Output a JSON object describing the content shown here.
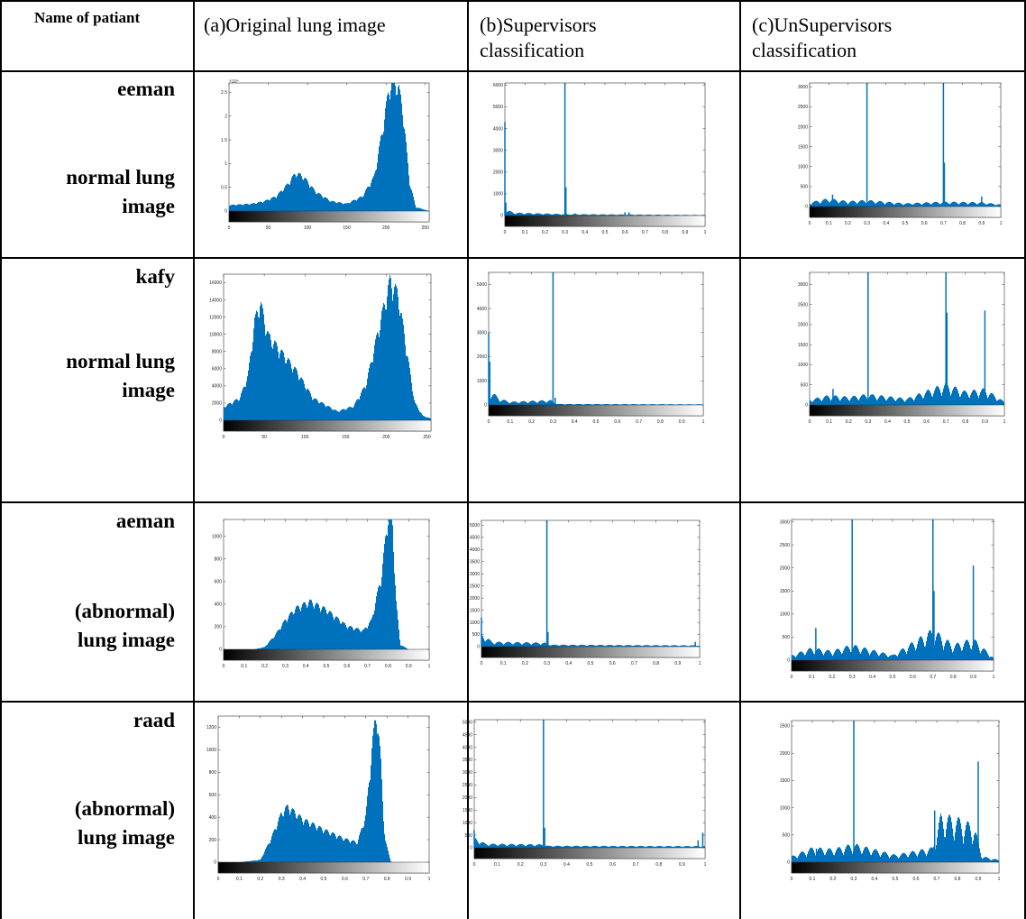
{
  "headers": {
    "name": "Name of patiant",
    "col_a": "(a)Original lung image",
    "col_b_line1": "(b)Supervisors",
    "col_b_line2": "classification",
    "col_c_line1": "(c)UnSupervisors",
    "col_c_line2": "classification"
  },
  "rows": [
    {
      "name": "eeman",
      "label_line1": "normal lung",
      "label_line2": "image"
    },
    {
      "name": "kafy",
      "label_line1": "normal lung",
      "label_line2": "image"
    },
    {
      "name": "aeman",
      "label_line1": "(abnormal)",
      "label_line2": "lung image"
    },
    {
      "name": "raad",
      "label_line1": "(abnormal)",
      "label_line2": "lung image"
    }
  ],
  "colors": {
    "bar": "#0072BD",
    "border": "#000000"
  },
  "chart_data": [
    {
      "id": "r1a",
      "type": "area",
      "xlim": [
        0,
        255
      ],
      "xticks": [
        0,
        50,
        100,
        150,
        200,
        250
      ],
      "yticks": [
        0,
        0.5,
        1,
        1.5,
        2,
        2.5
      ],
      "ylim": [
        0,
        2.7
      ],
      "y_exponent": "×10⁴",
      "peaks": [
        [
          0,
          0.12
        ],
        [
          30,
          0.15
        ],
        [
          45,
          0.2
        ],
        [
          60,
          0.3
        ],
        [
          75,
          0.55
        ],
        [
          85,
          0.78
        ],
        [
          95,
          0.7
        ],
        [
          110,
          0.4
        ],
        [
          130,
          0.2
        ],
        [
          150,
          0.15
        ],
        [
          170,
          0.3
        ],
        [
          185,
          0.7
        ],
        [
          195,
          1.6
        ],
        [
          205,
          2.6
        ],
        [
          215,
          2.6
        ],
        [
          222,
          2.0
        ],
        [
          230,
          0.6
        ],
        [
          238,
          0.08
        ],
        [
          255,
          0
        ]
      ]
    },
    {
      "id": "r1b",
      "type": "spikes",
      "xlim": [
        0,
        1
      ],
      "xticks": [
        0,
        0.1,
        0.2,
        0.3,
        0.4,
        0.5,
        0.6,
        0.7,
        0.8,
        0.9,
        1
      ],
      "yticks": [
        0,
        1000,
        2000,
        3000,
        4000,
        5000,
        6000
      ],
      "ylim": [
        0,
        6100
      ],
      "spikes": [
        [
          0,
          4300
        ],
        [
          0.005,
          600
        ],
        [
          0.3,
          6100
        ],
        [
          0.305,
          1300
        ],
        [
          0.35,
          100
        ],
        [
          0.6,
          150
        ],
        [
          0.62,
          150
        ]
      ],
      "base": [
        [
          0,
          200
        ],
        [
          0.05,
          100
        ],
        [
          0.3,
          50
        ],
        [
          1,
          20
        ]
      ]
    },
    {
      "id": "r1c",
      "type": "spikes",
      "xlim": [
        0,
        1
      ],
      "xticks": [
        0,
        0.1,
        0.2,
        0.3,
        0.4,
        0.5,
        0.6,
        0.7,
        0.8,
        0.9,
        1
      ],
      "yticks": [
        0,
        500,
        1000,
        1500,
        2000,
        2500,
        3000
      ],
      "ylim": [
        0,
        3100
      ],
      "spikes": [
        [
          0.12,
          300
        ],
        [
          0.3,
          3100
        ],
        [
          0.7,
          3100
        ],
        [
          0.705,
          1100
        ],
        [
          0.9,
          250
        ]
      ],
      "base": [
        [
          0,
          80
        ],
        [
          0.1,
          150
        ],
        [
          0.2,
          100
        ],
        [
          0.3,
          120
        ],
        [
          0.5,
          60
        ],
        [
          0.7,
          90
        ],
        [
          0.9,
          80
        ],
        [
          1,
          40
        ]
      ]
    },
    {
      "id": "r2a",
      "type": "area",
      "xlim": [
        0,
        255
      ],
      "xticks": [
        0,
        50,
        100,
        150,
        200,
        250
      ],
      "yticks": [
        0,
        2000,
        4000,
        6000,
        8000,
        10000,
        12000,
        14000,
        16000
      ],
      "ylim": [
        0,
        17000
      ],
      "peaks": [
        [
          0,
          1500
        ],
        [
          20,
          2500
        ],
        [
          30,
          5000
        ],
        [
          38,
          11000
        ],
        [
          45,
          13300
        ],
        [
          55,
          9500
        ],
        [
          70,
          7800
        ],
        [
          90,
          5500
        ],
        [
          110,
          2500
        ],
        [
          140,
          1000
        ],
        [
          160,
          1600
        ],
        [
          175,
          4000
        ],
        [
          190,
          10000
        ],
        [
          205,
          15800
        ],
        [
          215,
          14000
        ],
        [
          225,
          8000
        ],
        [
          235,
          2000
        ],
        [
          245,
          500
        ],
        [
          255,
          200
        ]
      ]
    },
    {
      "id": "r2b",
      "type": "spikes",
      "xlim": [
        0,
        1
      ],
      "xticks": [
        0,
        0.1,
        0.2,
        0.3,
        0.4,
        0.5,
        0.6,
        0.7,
        0.8,
        0.9,
        1
      ],
      "yticks": [
        0,
        1000,
        2000,
        3000,
        4000,
        5000
      ],
      "ylim": [
        0,
        5500
      ],
      "spikes": [
        [
          0,
          3000
        ],
        [
          0.005,
          1800
        ],
        [
          0.3,
          5500
        ],
        [
          0.31,
          300
        ]
      ],
      "base": [
        [
          0,
          500
        ],
        [
          0.05,
          200
        ],
        [
          0.1,
          100
        ],
        [
          0.29,
          150
        ],
        [
          0.32,
          30
        ],
        [
          1,
          20
        ]
      ]
    },
    {
      "id": "r2c",
      "type": "spikes",
      "xlim": [
        0,
        1
      ],
      "xticks": [
        0,
        0.1,
        0.2,
        0.3,
        0.4,
        0.5,
        0.6,
        0.7,
        0.8,
        0.9,
        1
      ],
      "yticks": [
        0,
        500,
        1000,
        1500,
        2000,
        2500,
        3000
      ],
      "ylim": [
        0,
        3300
      ],
      "spikes": [
        [
          0.12,
          400
        ],
        [
          0.3,
          3300
        ],
        [
          0.7,
          3300
        ],
        [
          0.705,
          2300
        ],
        [
          0.9,
          2350
        ]
      ],
      "base": [
        [
          0,
          100
        ],
        [
          0.1,
          180
        ],
        [
          0.2,
          150
        ],
        [
          0.3,
          200
        ],
        [
          0.5,
          120
        ],
        [
          0.7,
          400
        ],
        [
          0.8,
          250
        ],
        [
          0.9,
          300
        ],
        [
          1,
          60
        ]
      ]
    },
    {
      "id": "r3a",
      "type": "area",
      "xlim": [
        0,
        1
      ],
      "xticks": [
        0,
        0.1,
        0.2,
        0.3,
        0.4,
        0.5,
        0.6,
        0.7,
        0.8,
        0.9,
        1
      ],
      "yticks": [
        0,
        200,
        400,
        600,
        800,
        1000
      ],
      "ylim": [
        0,
        1150
      ],
      "peaks": [
        [
          0.15,
          0
        ],
        [
          0.2,
          20
        ],
        [
          0.25,
          120
        ],
        [
          0.3,
          250
        ],
        [
          0.35,
          350
        ],
        [
          0.42,
          410
        ],
        [
          0.5,
          340
        ],
        [
          0.6,
          200
        ],
        [
          0.68,
          160
        ],
        [
          0.72,
          250
        ],
        [
          0.77,
          650
        ],
        [
          0.8,
          1150
        ],
        [
          0.82,
          1150
        ],
        [
          0.84,
          400
        ],
        [
          0.86,
          40
        ],
        [
          0.9,
          0
        ]
      ]
    },
    {
      "id": "r3b",
      "type": "spikes",
      "xlim": [
        0,
        1
      ],
      "xticks": [
        0,
        0.1,
        0.2,
        0.3,
        0.4,
        0.5,
        0.6,
        0.7,
        0.8,
        0.9,
        1
      ],
      "yticks": [
        0,
        500,
        1000,
        1500,
        2000,
        2500,
        3000,
        3500,
        4000,
        4500,
        5000
      ],
      "ylim": [
        0,
        5200
      ],
      "spikes": [
        [
          0,
          1200
        ],
        [
          0.3,
          5200
        ],
        [
          0.305,
          600
        ],
        [
          0.98,
          200
        ]
      ],
      "base": [
        [
          0,
          400
        ],
        [
          0.05,
          150
        ],
        [
          0.29,
          120
        ],
        [
          0.32,
          60
        ],
        [
          1,
          40
        ]
      ]
    },
    {
      "id": "r3c",
      "type": "spikes",
      "xlim": [
        0,
        1
      ],
      "xticks": [
        0,
        0.1,
        0.2,
        0.3,
        0.4,
        0.5,
        0.6,
        0.7,
        0.8,
        0.9,
        1
      ],
      "yticks": [
        0,
        500,
        1000,
        1500,
        2000,
        2500,
        3000
      ],
      "ylim": [
        0,
        3050
      ],
      "spikes": [
        [
          0.12,
          700
        ],
        [
          0.3,
          3050
        ],
        [
          0.7,
          3050
        ],
        [
          0.705,
          1500
        ],
        [
          0.9,
          2050
        ]
      ],
      "base": [
        [
          0,
          80
        ],
        [
          0.1,
          200
        ],
        [
          0.2,
          150
        ],
        [
          0.3,
          250
        ],
        [
          0.5,
          80
        ],
        [
          0.7,
          500
        ],
        [
          0.8,
          250
        ],
        [
          0.9,
          350
        ],
        [
          1,
          40
        ]
      ]
    },
    {
      "id": "r4a",
      "type": "area",
      "xlim": [
        0,
        1
      ],
      "xticks": [
        0,
        0.1,
        0.2,
        0.3,
        0.4,
        0.5,
        0.6,
        0.7,
        0.8,
        0.9,
        1
      ],
      "yticks": [
        0,
        200,
        400,
        600,
        800,
        1000,
        1200
      ],
      "ylim": [
        0,
        1300
      ],
      "peaks": [
        [
          0.1,
          0
        ],
        [
          0.2,
          20
        ],
        [
          0.25,
          200
        ],
        [
          0.3,
          420
        ],
        [
          0.33,
          480
        ],
        [
          0.4,
          370
        ],
        [
          0.5,
          280
        ],
        [
          0.6,
          200
        ],
        [
          0.66,
          170
        ],
        [
          0.7,
          400
        ],
        [
          0.73,
          1000
        ],
        [
          0.75,
          1300
        ],
        [
          0.77,
          900
        ],
        [
          0.79,
          200
        ],
        [
          0.82,
          0
        ]
      ]
    },
    {
      "id": "r4b",
      "type": "spikes",
      "xlim": [
        0,
        1
      ],
      "xticks": [
        0,
        0.1,
        0.2,
        0.3,
        0.4,
        0.5,
        0.6,
        0.7,
        0.8,
        0.9,
        1
      ],
      "yticks": [
        0,
        500,
        1000,
        1500,
        2000,
        2500,
        3000,
        3500,
        4000,
        4500,
        5000
      ],
      "ylim": [
        0,
        5100
      ],
      "spikes": [
        [
          0,
          700
        ],
        [
          0.3,
          5100
        ],
        [
          0.305,
          800
        ],
        [
          0.99,
          600
        ],
        [
          0.97,
          300
        ]
      ],
      "base": [
        [
          0,
          300
        ],
        [
          0.05,
          120
        ],
        [
          0.29,
          100
        ],
        [
          0.32,
          60
        ],
        [
          1,
          50
        ]
      ]
    },
    {
      "id": "r4c",
      "type": "spikes",
      "xlim": [
        0,
        1
      ],
      "xticks": [
        0,
        0.1,
        0.2,
        0.3,
        0.4,
        0.5,
        0.6,
        0.7,
        0.8,
        0.9,
        1
      ],
      "yticks": [
        0,
        500,
        1000,
        1500,
        2000,
        2500
      ],
      "ylim": [
        0,
        2600
      ],
      "spikes": [
        [
          0.12,
          250
        ],
        [
          0.3,
          2600
        ],
        [
          0.9,
          1850
        ],
        [
          0.69,
          950
        ]
      ],
      "base": [
        [
          0,
          80
        ],
        [
          0.1,
          200
        ],
        [
          0.2,
          180
        ],
        [
          0.3,
          250
        ],
        [
          0.5,
          100
        ],
        [
          0.68,
          200
        ],
        [
          0.72,
          650
        ],
        [
          0.8,
          600
        ],
        [
          0.88,
          500
        ],
        [
          0.92,
          80
        ],
        [
          1,
          30
        ]
      ]
    }
  ]
}
